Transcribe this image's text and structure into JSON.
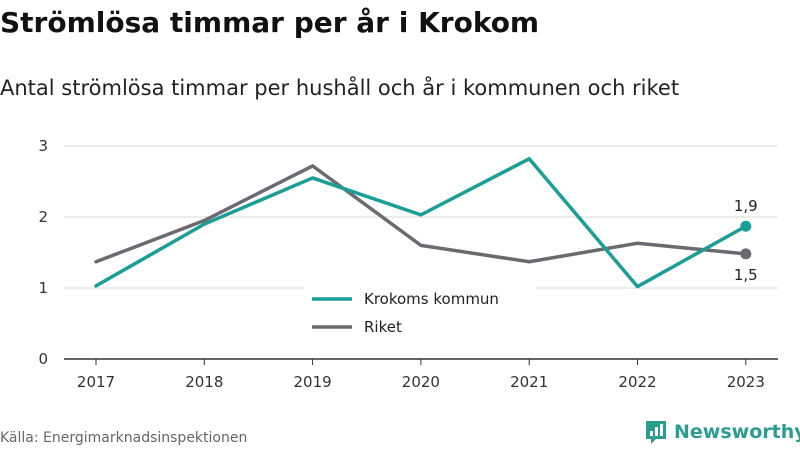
{
  "header": {
    "title": "Strömlösa timmar per år i Krokom",
    "subtitle": "Antal strömlösa timmar per hushåll och år i kommunen och riket"
  },
  "footer": {
    "source": "Källa: Energimarknadsinspektionen",
    "brand": "Newsworthy"
  },
  "colors": {
    "krokom": "#1a9e95",
    "riket": "#6b6a70",
    "grid": "#d9d9d9",
    "axis": "#333333"
  },
  "chart_data": {
    "type": "line",
    "categories": [
      "2017",
      "2018",
      "2019",
      "2020",
      "2021",
      "2022",
      "2023"
    ],
    "series": [
      {
        "name": "Krokoms kommun",
        "values": [
          1.03,
          1.9,
          2.55,
          2.03,
          2.82,
          1.02,
          1.87
        ],
        "end_label": "1,9"
      },
      {
        "name": "Riket",
        "values": [
          1.37,
          1.95,
          2.72,
          1.6,
          1.37,
          1.63,
          1.48
        ],
        "end_label": "1,5"
      }
    ],
    "yticks": [
      "0",
      "1",
      "2",
      "3"
    ],
    "ylim": [
      0,
      3
    ],
    "grid": true,
    "legend_position": "bottom-center"
  }
}
